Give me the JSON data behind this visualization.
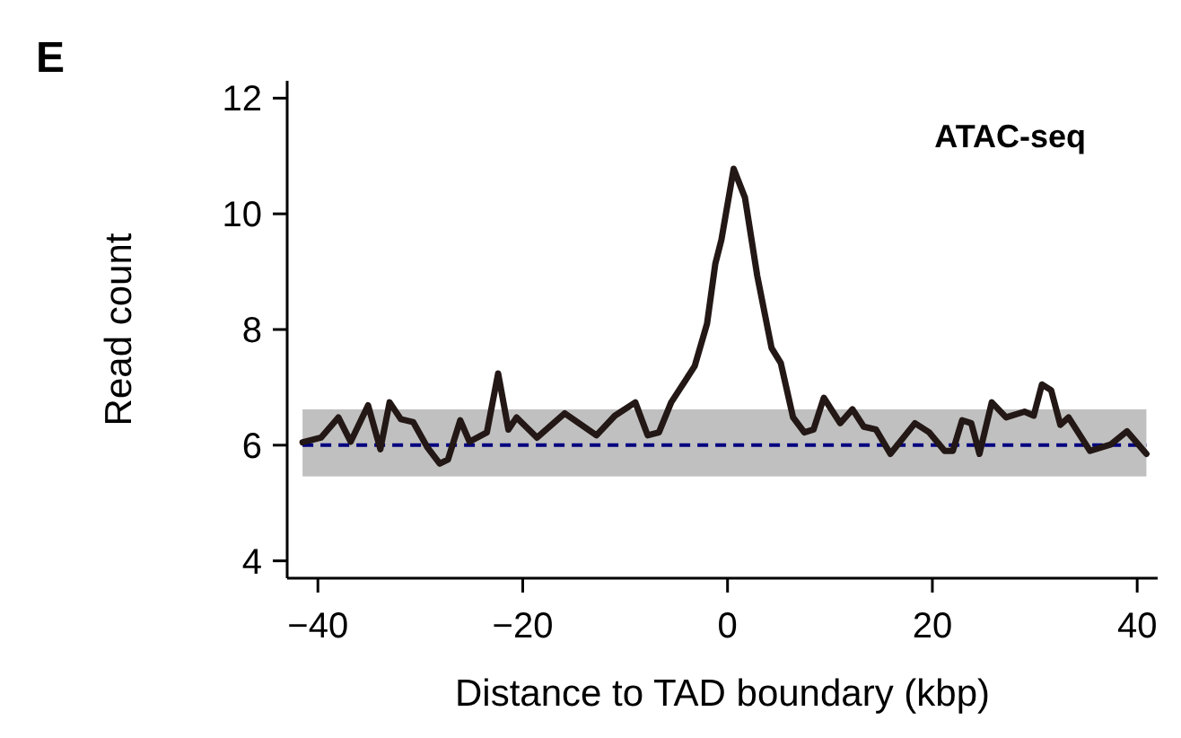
{
  "chart_data": {
    "type": "line",
    "title": "ATAC-seq",
    "xlabel": "Distance to TAD boundary (kbp)",
    "ylabel": "Read count",
    "annotations": [
      "E"
    ],
    "x": [
      -41.5,
      -39.7,
      -38,
      -36.8,
      -35.1,
      -33.9,
      -33,
      -31.9,
      -30.7,
      -29.3,
      -28.1,
      -27.3,
      -26.1,
      -25.2,
      -23.5,
      -22.4,
      -21.4,
      -20.6,
      -18.6,
      -15.9,
      -12.8,
      -11,
      -9,
      -7.8,
      -6.7,
      -5.5,
      -3.2,
      -2,
      -1.2,
      -0.6,
      0.6,
      1.7,
      2.9,
      4.3,
      5.2,
      6.4,
      7.5,
      8.4,
      9.4,
      11,
      12.2,
      13.3,
      14.5,
      15.9,
      18.3,
      19.7,
      21.2,
      22,
      22.9,
      23.8,
      24.6,
      25.8,
      27.2,
      29,
      29.9,
      30.7,
      31.6,
      32.5,
      33.3,
      35.4,
      37.4,
      39,
      40.9
    ],
    "series": [
      {
        "color": "#231815",
        "values": [
          6.05,
          6.13,
          6.48,
          6.06,
          6.69,
          5.93,
          6.74,
          6.45,
          6.4,
          5.96,
          5.68,
          5.75,
          6.43,
          6.06,
          6.22,
          7.24,
          6.27,
          6.48,
          6.13,
          6.55,
          6.17,
          6.51,
          6.74,
          6.17,
          6.22,
          6.74,
          7.37,
          8.1,
          9.13,
          9.55,
          10.78,
          10.28,
          8.93,
          7.68,
          7.42,
          6.48,
          6.22,
          6.27,
          6.82,
          6.38,
          6.62,
          6.32,
          6.27,
          5.85,
          6.38,
          6.22,
          5.9,
          5.9,
          6.43,
          6.38,
          5.85,
          6.74,
          6.48,
          6.58,
          6.51,
          7.05,
          6.95,
          6.35,
          6.48,
          5.9,
          6.01,
          6.24,
          5.85
        ]
      }
    ],
    "xlim": [
      -43,
      42
    ],
    "ylim": [
      3.7,
      12.3
    ],
    "xticks": [
      -40,
      -20,
      0,
      20,
      40
    ],
    "yticks": [
      4,
      6,
      8,
      10,
      12
    ],
    "grid": false,
    "marker": "none",
    "line_style": "solid",
    "ref_lines": [
      {
        "axis": "y",
        "value": 6,
        "color": "#000080",
        "line_style": "dashed"
      }
    ],
    "bands": [
      {
        "axis": "y",
        "from": 5.46,
        "to": 6.62,
        "color": "#c0c0c0"
      }
    ]
  }
}
